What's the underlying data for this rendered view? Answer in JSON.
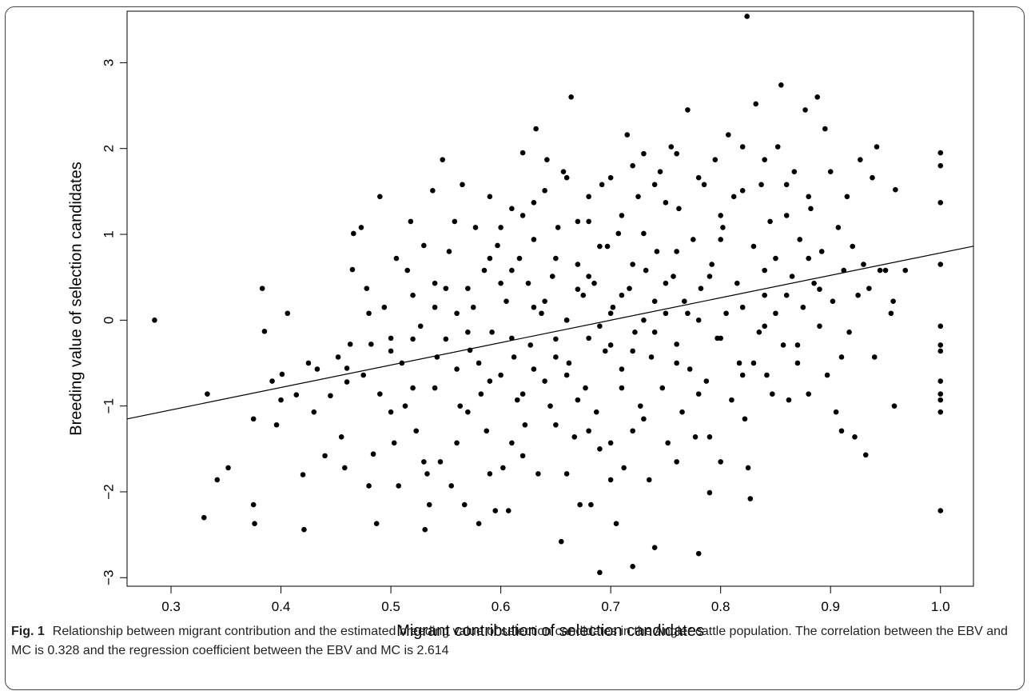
{
  "caption": {
    "label": "Fig. 1",
    "text": "Relationship between migrant contribution and the estimated breeding value of selection candidates in the Angler cattle population. The correlation between the EBV and MC is 0.328 and the regression coefficient between the EBV and MC is 2.614"
  },
  "chart_data": {
    "type": "scatter",
    "title": "",
    "xlabel": "Migrant contribution of selection candidates",
    "ylabel": "Breeding value of selection candidates",
    "xlim": [
      0.26,
      1.03
    ],
    "ylim": [
      -3.1,
      3.6
    ],
    "xticks": [
      0.3,
      0.4,
      0.5,
      0.6,
      0.7,
      0.8,
      0.9,
      1.0
    ],
    "xtick_labels": [
      "0.3",
      "0.4",
      "0.5",
      "0.6",
      "0.7",
      "0.8",
      "0.9",
      "1.0"
    ],
    "yticks": [
      -3,
      -2,
      -1,
      0,
      1,
      2,
      3
    ],
    "ytick_labels": [
      "−3",
      "−2",
      "−1",
      "0",
      "1",
      "2",
      "3"
    ],
    "grid": false,
    "regression_line": {
      "slope": 2.614,
      "intercept": -1.83
    },
    "correlation": 0.328,
    "point_color": "#000000",
    "line_color": "#000000",
    "points": [
      [
        0.285,
        0.0
      ],
      [
        0.33,
        -2.3
      ],
      [
        0.333,
        -0.86
      ],
      [
        0.342,
        -1.86
      ],
      [
        0.352,
        -1.72
      ],
      [
        0.375,
        -2.15
      ],
      [
        0.376,
        -2.37
      ],
      [
        0.375,
        -1.15
      ],
      [
        0.383,
        0.37
      ],
      [
        0.385,
        -0.13
      ],
      [
        0.392,
        -0.71
      ],
      [
        0.396,
        -1.22
      ],
      [
        0.4,
        -0.93
      ],
      [
        0.401,
        -0.63
      ],
      [
        0.406,
        0.08
      ],
      [
        0.414,
        -0.87
      ],
      [
        0.42,
        -1.8
      ],
      [
        0.421,
        -2.44
      ],
      [
        0.425,
        -0.5
      ],
      [
        0.43,
        -1.07
      ],
      [
        0.433,
        -0.57
      ],
      [
        0.44,
        -1.58
      ],
      [
        0.445,
        -0.88
      ],
      [
        0.452,
        -0.43
      ],
      [
        0.455,
        -1.36
      ],
      [
        0.458,
        -1.72
      ],
      [
        0.46,
        -0.56
      ],
      [
        0.463,
        -0.28
      ],
      [
        0.465,
        0.59
      ],
      [
        0.466,
        1.01
      ],
      [
        0.473,
        1.08
      ],
      [
        0.475,
        -0.64
      ],
      [
        0.478,
        0.37
      ],
      [
        0.48,
        -1.93
      ],
      [
        0.482,
        -0.28
      ],
      [
        0.484,
        -1.56
      ],
      [
        0.487,
        -2.37
      ],
      [
        0.49,
        1.44
      ],
      [
        0.49,
        -0.86
      ],
      [
        0.494,
        0.15
      ],
      [
        0.5,
        -0.21
      ],
      [
        0.503,
        -1.43
      ],
      [
        0.505,
        0.72
      ],
      [
        0.507,
        -1.93
      ],
      [
        0.51,
        -0.5
      ],
      [
        0.513,
        -1.0
      ],
      [
        0.515,
        0.58
      ],
      [
        0.518,
        1.15
      ],
      [
        0.52,
        -0.79
      ],
      [
        0.523,
        -1.29
      ],
      [
        0.527,
        -0.07
      ],
      [
        0.53,
        0.87
      ],
      [
        0.531,
        -2.44
      ],
      [
        0.533,
        -1.79
      ],
      [
        0.535,
        -2.15
      ],
      [
        0.538,
        1.51
      ],
      [
        0.54,
        0.43
      ],
      [
        0.542,
        -0.43
      ],
      [
        0.545,
        -1.65
      ],
      [
        0.547,
        1.87
      ],
      [
        0.55,
        -0.22
      ],
      [
        0.553,
        0.8
      ],
      [
        0.555,
        -1.93
      ],
      [
        0.558,
        1.15
      ],
      [
        0.56,
        -0.57
      ],
      [
        0.563,
        -1.0
      ],
      [
        0.565,
        1.58
      ],
      [
        0.567,
        -2.15
      ],
      [
        0.57,
        0.37
      ],
      [
        0.572,
        -0.35
      ],
      [
        0.575,
        0.15
      ],
      [
        0.577,
        1.08
      ],
      [
        0.58,
        -2.37
      ],
      [
        0.582,
        -0.86
      ],
      [
        0.585,
        0.58
      ],
      [
        0.587,
        -1.29
      ],
      [
        0.59,
        1.44
      ],
      [
        0.592,
        -0.14
      ],
      [
        0.595,
        -2.22
      ],
      [
        0.597,
        0.87
      ],
      [
        0.6,
        -0.64
      ],
      [
        0.602,
        -1.72
      ],
      [
        0.605,
        0.22
      ],
      [
        0.607,
        -2.22
      ],
      [
        0.61,
        1.3
      ],
      [
        0.612,
        -0.43
      ],
      [
        0.615,
        -0.93
      ],
      [
        0.617,
        0.72
      ],
      [
        0.62,
        1.95
      ],
      [
        0.622,
        -1.22
      ],
      [
        0.625,
        0.43
      ],
      [
        0.627,
        -0.29
      ],
      [
        0.63,
        1.37
      ],
      [
        0.632,
        2.23
      ],
      [
        0.634,
        -1.79
      ],
      [
        0.637,
        0.08
      ],
      [
        0.64,
        -0.71
      ],
      [
        0.642,
        1.87
      ],
      [
        0.645,
        -1.0
      ],
      [
        0.647,
        0.51
      ],
      [
        0.65,
        -0.22
      ],
      [
        0.652,
        1.08
      ],
      [
        0.655,
        -2.58
      ],
      [
        0.657,
        1.73
      ],
      [
        0.66,
        0.0
      ],
      [
        0.662,
        -0.5
      ],
      [
        0.664,
        2.6
      ],
      [
        0.667,
        -1.36
      ],
      [
        0.67,
        0.65
      ],
      [
        0.672,
        -2.15
      ],
      [
        0.675,
        0.29
      ],
      [
        0.677,
        -0.79
      ],
      [
        0.68,
        1.15
      ],
      [
        0.682,
        -2.15
      ],
      [
        0.685,
        0.43
      ],
      [
        0.687,
        -1.07
      ],
      [
        0.69,
        -2.94
      ],
      [
        0.692,
        1.58
      ],
      [
        0.695,
        -0.36
      ],
      [
        0.697,
        0.86
      ],
      [
        0.7,
        -1.43
      ],
      [
        0.702,
        0.15
      ],
      [
        0.705,
        -2.37
      ],
      [
        0.707,
        1.01
      ],
      [
        0.71,
        -0.57
      ],
      [
        0.712,
        -1.72
      ],
      [
        0.715,
        2.16
      ],
      [
        0.717,
        0.37
      ],
      [
        0.72,
        -2.87
      ],
      [
        0.722,
        -0.14
      ],
      [
        0.725,
        1.44
      ],
      [
        0.727,
        -1.0
      ],
      [
        0.73,
        1.94
      ],
      [
        0.732,
        0.58
      ],
      [
        0.735,
        -1.86
      ],
      [
        0.737,
        -0.43
      ],
      [
        0.74,
        -2.65
      ],
      [
        0.742,
        0.8
      ],
      [
        0.745,
        1.73
      ],
      [
        0.747,
        -0.79
      ],
      [
        0.75,
        0.08
      ],
      [
        0.752,
        -1.43
      ],
      [
        0.755,
        2.02
      ],
      [
        0.757,
        0.51
      ],
      [
        0.76,
        -0.28
      ],
      [
        0.762,
        1.3
      ],
      [
        0.765,
        -1.07
      ],
      [
        0.767,
        0.22
      ],
      [
        0.77,
        2.45
      ],
      [
        0.772,
        -0.57
      ],
      [
        0.775,
        0.94
      ],
      [
        0.777,
        -1.36
      ],
      [
        0.78,
        -2.72
      ],
      [
        0.782,
        0.37
      ],
      [
        0.785,
        1.58
      ],
      [
        0.787,
        -0.71
      ],
      [
        0.79,
        -2.01
      ],
      [
        0.792,
        0.65
      ],
      [
        0.795,
        1.87
      ],
      [
        0.797,
        -0.21
      ],
      [
        0.8,
        -1.65
      ],
      [
        0.802,
        1.08
      ],
      [
        0.805,
        0.08
      ],
      [
        0.807,
        2.16
      ],
      [
        0.81,
        -0.93
      ],
      [
        0.812,
        1.44
      ],
      [
        0.815,
        0.43
      ],
      [
        0.817,
        -0.5
      ],
      [
        0.82,
        2.02
      ],
      [
        0.822,
        -1.15
      ],
      [
        0.824,
        3.54
      ],
      [
        0.825,
        -1.72
      ],
      [
        0.827,
        -2.08
      ],
      [
        0.83,
        0.86
      ],
      [
        0.832,
        2.52
      ],
      [
        0.835,
        -0.14
      ],
      [
        0.837,
        1.58
      ],
      [
        0.84,
        0.29
      ],
      [
        0.842,
        -0.64
      ],
      [
        0.845,
        1.15
      ],
      [
        0.847,
        -0.86
      ],
      [
        0.85,
        0.72
      ],
      [
        0.852,
        2.02
      ],
      [
        0.855,
        2.74
      ],
      [
        0.857,
        -0.29
      ],
      [
        0.86,
        1.22
      ],
      [
        0.862,
        -0.93
      ],
      [
        0.865,
        0.51
      ],
      [
        0.867,
        1.73
      ],
      [
        0.87,
        -0.5
      ],
      [
        0.872,
        0.94
      ],
      [
        0.875,
        0.15
      ],
      [
        0.877,
        2.45
      ],
      [
        0.88,
        -0.86
      ],
      [
        0.882,
        1.3
      ],
      [
        0.885,
        0.43
      ],
      [
        0.888,
        2.6
      ],
      [
        0.89,
        -0.07
      ],
      [
        0.892,
        0.8
      ],
      [
        0.895,
        2.23
      ],
      [
        0.897,
        -0.64
      ],
      [
        0.9,
        1.73
      ],
      [
        0.902,
        0.22
      ],
      [
        0.905,
        -1.07
      ],
      [
        0.907,
        1.08
      ],
      [
        0.91,
        -1.29
      ],
      [
        0.912,
        0.58
      ],
      [
        0.915,
        1.44
      ],
      [
        0.917,
        -0.14
      ],
      [
        0.92,
        0.86
      ],
      [
        0.922,
        -1.36
      ],
      [
        0.925,
        0.29
      ],
      [
        0.927,
        1.87
      ],
      [
        0.93,
        0.65
      ],
      [
        0.932,
        -1.57
      ],
      [
        0.935,
        0.37
      ],
      [
        0.938,
        1.66
      ],
      [
        0.94,
        -0.43
      ],
      [
        0.942,
        2.02
      ],
      [
        0.945,
        0.58
      ],
      [
        0.95,
        0.58
      ],
      [
        0.955,
        0.08
      ],
      [
        0.957,
        0.22
      ],
      [
        0.958,
        -1.0
      ],
      [
        0.959,
        1.52
      ],
      [
        0.968,
        0.58
      ],
      [
        1.0,
        1.95
      ],
      [
        1.0,
        1.8
      ],
      [
        1.0,
        1.37
      ],
      [
        1.0,
        0.65
      ],
      [
        1.0,
        -0.07
      ],
      [
        1.0,
        -0.29
      ],
      [
        1.0,
        -0.36
      ],
      [
        1.0,
        -0.71
      ],
      [
        1.0,
        -0.86
      ],
      [
        1.0,
        -0.93
      ],
      [
        1.0,
        -1.07
      ],
      [
        1.0,
        -2.22
      ],
      [
        0.5,
        -0.36
      ],
      [
        0.52,
        0.29
      ],
      [
        0.54,
        -0.79
      ],
      [
        0.56,
        0.08
      ],
      [
        0.58,
        -0.5
      ],
      [
        0.6,
        0.43
      ],
      [
        0.62,
        -0.86
      ],
      [
        0.64,
        0.22
      ],
      [
        0.66,
        -0.64
      ],
      [
        0.68,
        0.51
      ],
      [
        0.7,
        -0.29
      ],
      [
        0.72,
        0.65
      ],
      [
        0.74,
        -0.14
      ],
      [
        0.76,
        0.8
      ],
      [
        0.78,
        0.0
      ],
      [
        0.8,
        0.94
      ],
      [
        0.82,
        0.15
      ],
      [
        0.84,
        0.58
      ],
      [
        0.86,
        0.29
      ],
      [
        0.88,
        0.72
      ],
      [
        0.61,
        -0.21
      ],
      [
        0.63,
        0.15
      ],
      [
        0.65,
        -0.43
      ],
      [
        0.67,
        0.36
      ],
      [
        0.69,
        -0.07
      ],
      [
        0.71,
        0.29
      ],
      [
        0.73,
        0.0
      ],
      [
        0.75,
        0.43
      ],
      [
        0.77,
        0.08
      ],
      [
        0.79,
        0.51
      ],
      [
        0.57,
        -1.07
      ],
      [
        0.59,
        0.72
      ],
      [
        0.61,
        -1.43
      ],
      [
        0.63,
        0.94
      ],
      [
        0.65,
        -1.22
      ],
      [
        0.67,
        1.15
      ],
      [
        0.69,
        -1.5
      ],
      [
        0.71,
        1.22
      ],
      [
        0.73,
        -1.15
      ],
      [
        0.75,
        1.37
      ],
      [
        0.55,
        0.37
      ],
      [
        0.57,
        -0.14
      ],
      [
        0.59,
        -0.71
      ],
      [
        0.61,
        0.58
      ],
      [
        0.63,
        -0.57
      ],
      [
        0.65,
        0.72
      ],
      [
        0.67,
        -0.93
      ],
      [
        0.69,
        0.86
      ],
      [
        0.71,
        -0.79
      ],
      [
        0.73,
        1.01
      ],
      [
        0.46,
        -0.72
      ],
      [
        0.48,
        0.08
      ],
      [
        0.5,
        -1.07
      ],
      [
        0.52,
        -0.22
      ],
      [
        0.54,
        0.15
      ],
      [
        0.83,
        -0.5
      ],
      [
        0.85,
        0.08
      ],
      [
        0.87,
        -0.29
      ],
      [
        0.89,
        0.36
      ],
      [
        0.91,
        -0.43
      ],
      [
        0.66,
        0.0
      ],
      [
        0.68,
        -0.21
      ],
      [
        0.7,
        0.08
      ],
      [
        0.72,
        -0.36
      ],
      [
        0.74,
        0.22
      ],
      [
        0.76,
        -0.5
      ],
      [
        0.78,
        -0.86
      ],
      [
        0.8,
        -0.21
      ],
      [
        0.82,
        -0.64
      ],
      [
        0.84,
        -0.07
      ],
      [
        0.53,
        -1.65
      ],
      [
        0.56,
        -1.43
      ],
      [
        0.59,
        -1.79
      ],
      [
        0.62,
        -1.58
      ],
      [
        0.66,
        -1.79
      ],
      [
        0.68,
        -1.29
      ],
      [
        0.7,
        -1.86
      ],
      [
        0.72,
        -1.29
      ],
      [
        0.76,
        -1.65
      ],
      [
        0.79,
        -1.36
      ],
      [
        0.6,
        1.08
      ],
      [
        0.62,
        1.22
      ],
      [
        0.64,
        1.51
      ],
      [
        0.66,
        1.66
      ],
      [
        0.68,
        1.44
      ],
      [
        0.7,
        1.66
      ],
      [
        0.72,
        1.8
      ],
      [
        0.74,
        1.58
      ],
      [
        0.76,
        1.94
      ],
      [
        0.78,
        1.66
      ],
      [
        0.8,
        1.22
      ],
      [
        0.82,
        1.51
      ],
      [
        0.84,
        1.87
      ],
      [
        0.86,
        1.58
      ],
      [
        0.88,
        1.44
      ]
    ]
  }
}
